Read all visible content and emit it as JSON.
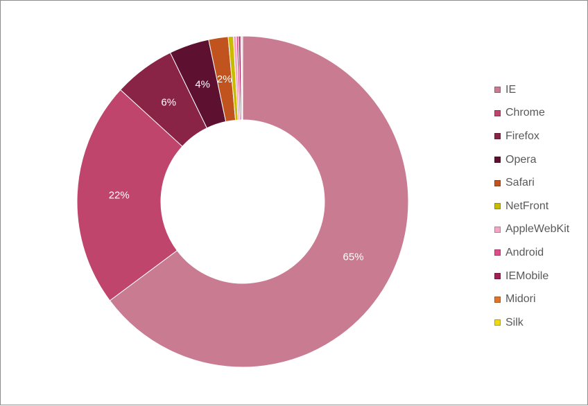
{
  "chart_data": {
    "type": "pie",
    "variant": "doughnut",
    "title": "",
    "legend_position": "right",
    "categories": [
      "IE",
      "Chrome",
      "Firefox",
      "Opera",
      "Safari",
      "NetFront",
      "AppleWebKit",
      "Android",
      "IEMobile",
      "Midori",
      "Silk"
    ],
    "values": [
      64.8,
      22.0,
      6.0,
      3.9,
      1.9,
      0.5,
      0.3,
      0.2,
      0.2,
      0.1,
      0.1
    ],
    "data_labels": [
      "65%",
      "22%",
      "6%",
      "4%",
      "2%",
      "",
      "",
      "",
      "",
      "",
      ""
    ],
    "colors": [
      "#C97B91",
      "#BF456C",
      "#8A2446",
      "#5E1030",
      "#C1531E",
      "#C9BB00",
      "#F4A6C4",
      "#E04C8A",
      "#A12058",
      "#E07428",
      "#F2D80E"
    ]
  }
}
